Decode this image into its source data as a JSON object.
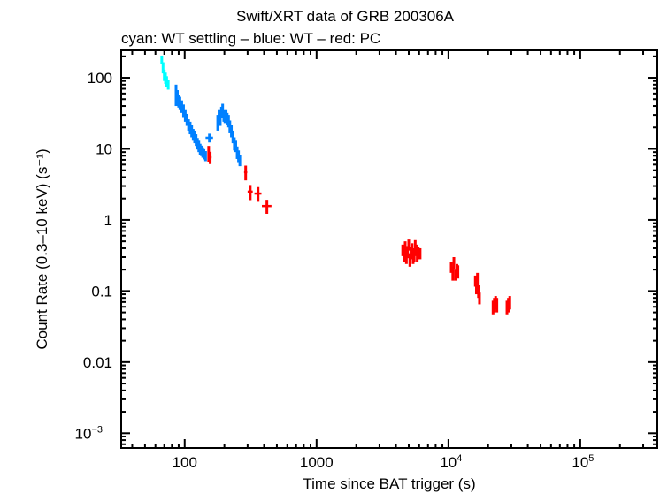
{
  "chart_data": {
    "type": "scatter",
    "title": "Swift/XRT data of GRB 200306A",
    "subtitle": "cyan: WT settling – blue: WT – red: PC",
    "xlabel": "Time since BAT trigger (s)",
    "ylabel": "Count Rate (0.3–10 keV) (s⁻¹)",
    "xscale": "log",
    "yscale": "log",
    "xlim": [
      33,
      384000
    ],
    "ylim": [
      0.00062,
      243
    ],
    "grid": false,
    "x_ticks": [
      {
        "value": 100,
        "base": "100",
        "exp": ""
      },
      {
        "value": 1000,
        "base": "1000",
        "exp": ""
      },
      {
        "value": 10000,
        "base": "10",
        "exp": "4"
      },
      {
        "value": 100000,
        "base": "10",
        "exp": "5"
      }
    ],
    "y_ticks": [
      {
        "value": 100,
        "base": "100",
        "exp": ""
      },
      {
        "value": 10,
        "base": "10",
        "exp": ""
      },
      {
        "value": 1,
        "base": "1",
        "exp": ""
      },
      {
        "value": 0.1,
        "base": "0.1",
        "exp": ""
      },
      {
        "value": 0.01,
        "base": "0.01",
        "exp": ""
      },
      {
        "value": 0.001,
        "base": "10",
        "exp": "−3"
      }
    ],
    "point_format": [
      "x",
      "y",
      "xerr",
      "yerr"
    ],
    "series": [
      {
        "name": "WT settling",
        "color": "#00ffff",
        "points": [
          [
            67,
            180,
            0.5,
            25
          ],
          [
            68.5,
            140,
            0.5,
            25
          ],
          [
            70,
            110,
            0.5,
            20
          ],
          [
            71.5,
            100,
            0.5,
            18
          ],
          [
            73,
            90,
            0.5,
            15
          ],
          [
            75,
            80,
            0.5,
            12
          ]
        ]
      },
      {
        "name": "WT",
        "color": "#0080ff",
        "points": [
          [
            86,
            60,
            0.5,
            20
          ],
          [
            88,
            55,
            0.5,
            12
          ],
          [
            90,
            48,
            0.5,
            10
          ],
          [
            92,
            45,
            0.5,
            9
          ],
          [
            95,
            40,
            0.5,
            8
          ],
          [
            98,
            35,
            0.5,
            7
          ],
          [
            101,
            30,
            0.5,
            6
          ],
          [
            104,
            26,
            0.5,
            5
          ],
          [
            107,
            22,
            0.5,
            4
          ],
          [
            110,
            20,
            0.5,
            4
          ],
          [
            113,
            18,
            0.5,
            3.5
          ],
          [
            116,
            16,
            0.5,
            3
          ],
          [
            119,
            15,
            0.5,
            3
          ],
          [
            122,
            13.5,
            0.5,
            2.5
          ],
          [
            125,
            12,
            0.5,
            2.2
          ],
          [
            128,
            11,
            0.5,
            2
          ],
          [
            131,
            10,
            0.5,
            1.8
          ],
          [
            134,
            9.5,
            0.5,
            1.6
          ],
          [
            137,
            9,
            0.5,
            1.5
          ],
          [
            140,
            8.5,
            0.5,
            1.4
          ],
          [
            144,
            8,
            0.5,
            1.3
          ],
          [
            154,
            14.3,
            10,
            2
          ],
          [
            178,
            24,
            0.8,
            6
          ],
          [
            182,
            30,
            0.8,
            6
          ],
          [
            186,
            27,
            0.8,
            6
          ],
          [
            190,
            33,
            0.8,
            6
          ],
          [
            194,
            36,
            0.8,
            7
          ],
          [
            198,
            30,
            0.8,
            6
          ],
          [
            202,
            28,
            0.8,
            5
          ],
          [
            206,
            31,
            0.8,
            5
          ],
          [
            210,
            27,
            0.8,
            5
          ],
          [
            215,
            25,
            0.8,
            5
          ],
          [
            220,
            21,
            0.8,
            4
          ],
          [
            226,
            18,
            0.8,
            3.5
          ],
          [
            232,
            15,
            0.8,
            3
          ],
          [
            238,
            12,
            0.8,
            2.5
          ],
          [
            244,
            11,
            0.8,
            2
          ],
          [
            250,
            9,
            0.8,
            1.8
          ],
          [
            256,
            8,
            0.8,
            1.5
          ],
          [
            262,
            7,
            0.8,
            1.3
          ]
        ]
      },
      {
        "name": "PC",
        "color": "#ff0000",
        "points": [
          [
            152,
            8.8,
            2,
            2.2
          ],
          [
            156,
            7.6,
            4,
            1.5
          ],
          [
            290,
            4.7,
            8,
            1.1
          ],
          [
            314,
            2.5,
            14,
            0.6
          ],
          [
            360,
            2.35,
            22,
            0.55
          ],
          [
            420,
            1.57,
            35,
            0.35
          ],
          [
            4500,
            0.38,
            40,
            0.07
          ],
          [
            4600,
            0.33,
            40,
            0.07
          ],
          [
            4700,
            0.42,
            40,
            0.08
          ],
          [
            4800,
            0.3,
            40,
            0.06
          ],
          [
            4900,
            0.36,
            40,
            0.07
          ],
          [
            5000,
            0.45,
            40,
            0.08
          ],
          [
            5100,
            0.28,
            40,
            0.06
          ],
          [
            5200,
            0.35,
            40,
            0.07
          ],
          [
            5300,
            0.4,
            40,
            0.07
          ],
          [
            5400,
            0.3,
            40,
            0.06
          ],
          [
            5500,
            0.33,
            40,
            0.07
          ],
          [
            5600,
            0.44,
            40,
            0.08
          ],
          [
            5700,
            0.38,
            40,
            0.07
          ],
          [
            5800,
            0.32,
            40,
            0.06
          ],
          [
            5900,
            0.35,
            40,
            0.07
          ],
          [
            6100,
            0.34,
            40,
            0.06
          ],
          [
            10500,
            0.22,
            80,
            0.04
          ],
          [
            10800,
            0.18,
            80,
            0.04
          ],
          [
            11000,
            0.25,
            80,
            0.05
          ],
          [
            11300,
            0.17,
            80,
            0.03
          ],
          [
            11600,
            0.2,
            80,
            0.04
          ],
          [
            11800,
            0.19,
            80,
            0.04
          ],
          [
            16000,
            0.14,
            100,
            0.025
          ],
          [
            16300,
            0.11,
            100,
            0.02
          ],
          [
            16600,
            0.15,
            100,
            0.03
          ],
          [
            16900,
            0.1,
            100,
            0.02
          ],
          [
            17200,
            0.08,
            100,
            0.015
          ],
          [
            21800,
            0.06,
            150,
            0.013
          ],
          [
            22300,
            0.065,
            150,
            0.015
          ],
          [
            22800,
            0.07,
            150,
            0.015
          ],
          [
            23300,
            0.065,
            150,
            0.015
          ],
          [
            27800,
            0.06,
            150,
            0.013
          ],
          [
            28500,
            0.065,
            150,
            0.015
          ],
          [
            29200,
            0.07,
            150,
            0.015
          ]
        ]
      }
    ]
  }
}
